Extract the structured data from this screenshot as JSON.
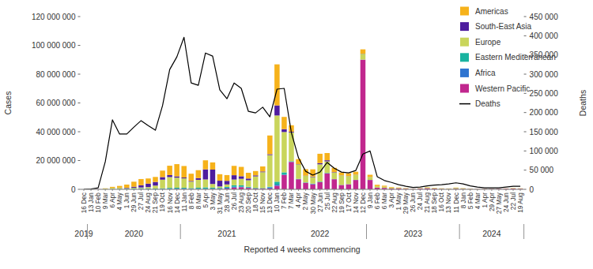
{
  "chart_data": {
    "type": "bar",
    "stacked": true,
    "legend": "upper right",
    "x_label": "Reported 4 weeks commencing",
    "y_label": "Cases",
    "y2_label": "Deaths",
    "categories": [
      "16 Dec",
      "13 Jan",
      "10 Feb",
      "9 Mar",
      "6 Apr",
      "4 May",
      "1 Jun",
      "29 Jun",
      "27 Jul",
      "24 Aug",
      "21 Sep",
      "19 Oct",
      "16 Nov",
      "14 Dec",
      "11 Jan",
      "8 Feb",
      "8 Mar",
      "5 Apr",
      "3 May",
      "31 May",
      "28 Jun",
      "26 Jul",
      "23 Aug",
      "20 Sep",
      "18 Oct",
      "15 Nov",
      "13 Dec",
      "10 Jan",
      "7 Feb",
      "7 Mar",
      "4 Apr",
      "2 May",
      "30 May",
      "27 Jun",
      "25 Jul",
      "22 Aug",
      "19 Sep",
      "17 Oct",
      "14 Nov",
      "12 Dec",
      "9 Jan",
      "6 Feb",
      "6 Mar",
      "3 Apr",
      "1 May",
      "29 May",
      "26 Jun",
      "24 Jul",
      "21 Aug",
      "18 Sep",
      "16 Oct",
      "13 Nov",
      "11 Dec",
      "8 Jan",
      "5 Feb",
      "4 Mar",
      "1 Apr",
      "29 Apr",
      "27 May",
      "24 Jun",
      "22 Jul",
      "19 Aug"
    ],
    "groups": [
      {
        "label": "2019",
        "count": 1
      },
      {
        "label": "2020",
        "count": 13
      },
      {
        "label": "2021",
        "count": 13
      },
      {
        "label": "2022",
        "count": 13
      },
      {
        "label": "2023",
        "count": 13
      },
      {
        "label": "2024",
        "count": 9
      }
    ],
    "series": [
      {
        "name": "Americas",
        "color": "#f6b21b",
        "values": [
          0,
          0,
          0,
          200000,
          700000,
          1200000,
          2200000,
          3500000,
          4300000,
          3600000,
          3500000,
          4500000,
          6500000,
          8500000,
          8000000,
          5000000,
          5500000,
          6300000,
          5000000,
          4500000,
          4000000,
          6500000,
          6500000,
          4000000,
          3000000,
          3500000,
          13000000,
          28500000,
          8500000,
          4500000,
          3500000,
          4500000,
          5000000,
          6500000,
          5000000,
          3000000,
          2000000,
          2000000,
          2000000,
          3000000,
          1500000,
          900000,
          700000,
          400000,
          300000,
          200000,
          100000,
          100000,
          200000,
          100000,
          100000,
          100000,
          150000,
          100000,
          100000,
          50000,
          50000,
          50000,
          50000,
          100000,
          100000,
          50000
        ]
      },
      {
        "name": "South-East Asia",
        "color": "#4e1d9e",
        "values": [
          0,
          0,
          0,
          0,
          0,
          100000,
          300000,
          700000,
          1600000,
          2400000,
          2500000,
          1800000,
          1400000,
          900000,
          600000,
          500000,
          1200000,
          7000000,
          10000000,
          4000000,
          2500000,
          3000000,
          1800000,
          1200000,
          700000,
          500000,
          600000,
          7000000,
          2000000,
          500000,
          200000,
          200000,
          400000,
          800000,
          800000,
          300000,
          100000,
          100000,
          100000,
          100000,
          50000,
          20000,
          20000,
          50000,
          50000,
          20000,
          10000,
          10000,
          20000,
          10000,
          10000,
          10000,
          50000,
          20000,
          10000,
          10000,
          10000,
          10000,
          10000,
          10000,
          10000,
          10000
        ]
      },
      {
        "name": "Europe",
        "color": "#c9d55c",
        "values": [
          0,
          0,
          0,
          400000,
          800000,
          800000,
          400000,
          500000,
          500000,
          900000,
          2000000,
          6000000,
          7500000,
          7000000,
          6500000,
          4500000,
          5500000,
          5500000,
          2500000,
          1000000,
          1800000,
          4000000,
          4500000,
          4500000,
          8000000,
          11000000,
          22000000,
          46000000,
          28000000,
          20000000,
          10000000,
          4500000,
          4500000,
          12000000,
          8000000,
          4500000,
          6500000,
          5500000,
          3500000,
          4000000,
          2000000,
          1000000,
          800000,
          500000,
          300000,
          200000,
          100000,
          200000,
          500000,
          400000,
          300000,
          300000,
          600000,
          400000,
          200000,
          100000,
          100000,
          50000,
          50000,
          100000,
          250000,
          250000
        ]
      },
      {
        "name": "Eastern Mediterranean",
        "color": "#19b3a0",
        "values": [
          0,
          0,
          0,
          30000,
          100000,
          200000,
          300000,
          400000,
          400000,
          400000,
          400000,
          500000,
          700000,
          600000,
          500000,
          500000,
          800000,
          1000000,
          800000,
          500000,
          500000,
          1000000,
          1000000,
          600000,
          400000,
          300000,
          400000,
          2000000,
          1500000,
          400000,
          200000,
          100000,
          200000,
          300000,
          300000,
          100000,
          100000,
          100000,
          100000,
          100000,
          50000,
          20000,
          10000,
          10000,
          10000,
          5000,
          5000,
          5000,
          5000,
          5000,
          5000,
          5000,
          5000,
          5000,
          5000,
          2000,
          2000,
          2000,
          2000,
          2000,
          2000,
          2000
        ]
      },
      {
        "name": "Africa",
        "color": "#2f74d0",
        "values": [
          0,
          0,
          0,
          5000,
          10000,
          20000,
          50000,
          150000,
          250000,
          150000,
          100000,
          100000,
          150000,
          300000,
          400000,
          200000,
          150000,
          150000,
          100000,
          200000,
          600000,
          600000,
          300000,
          200000,
          100000,
          100000,
          800000,
          800000,
          300000,
          100000,
          100000,
          200000,
          300000,
          100000,
          100000,
          50000,
          20000,
          20000,
          20000,
          20000,
          20000,
          5000,
          5000,
          2000,
          2000,
          2000,
          2000,
          2000,
          2000,
          2000,
          2000,
          2000,
          2000,
          2000,
          2000,
          2000,
          2000,
          2000,
          2000,
          2000,
          2000,
          2000
        ]
      },
      {
        "name": "Western Pacific",
        "color": "#c1278e",
        "values": [
          0,
          10000,
          70000,
          50000,
          100000,
          50000,
          50000,
          50000,
          100000,
          100000,
          100000,
          100000,
          150000,
          200000,
          200000,
          150000,
          150000,
          200000,
          300000,
          300000,
          500000,
          1200000,
          1500000,
          1000000,
          500000,
          500000,
          600000,
          2500000,
          10000000,
          19000000,
          7000000,
          4500000,
          3500000,
          5000000,
          11000000,
          7000000,
          3000000,
          3500000,
          6500000,
          90000000,
          6500000,
          1200000,
          1000000,
          600000,
          600000,
          400000,
          200000,
          500000,
          800000,
          500000,
          300000,
          200000,
          400000,
          300000,
          200000,
          150000,
          150000,
          200000,
          300000,
          400000,
          500000,
          400000
        ]
      },
      {
        "name": "Deaths",
        "color": "#000000",
        "type": "line",
        "axis": "y2",
        "values": [
          0,
          1000,
          4000,
          72000,
          181000,
          144000,
          144000,
          162000,
          179000,
          166000,
          154000,
          218000,
          312000,
          345000,
          396000,
          277000,
          271000,
          355000,
          347000,
          259000,
          236000,
          277000,
          263000,
          203000,
          199000,
          214000,
          189000,
          261000,
          263000,
          148000,
          82000,
          47000,
          37000,
          45000,
          70000,
          55000,
          45000,
          43000,
          49000,
          92000,
          100000,
          33000,
          23000,
          18000,
          12000,
          8000,
          5000,
          6000,
          9000,
          11000,
          12000,
          14000,
          17000,
          14000,
          9000,
          6000,
          4000,
          4000,
          4000,
          6000,
          8000,
          8000
        ]
      }
    ],
    "ylim": [
      0,
      120000000
    ],
    "yticks": [
      0,
      {
        "value": 20000000,
        "label": "20 000 000"
      },
      {
        "value": 40000000,
        "label": "40 000 000"
      },
      {
        "value": 60000000,
        "label": "60 000 000"
      },
      {
        "value": 80000000,
        "label": "80 000 000"
      },
      {
        "value": 100000000,
        "label": "100 000 000"
      },
      {
        "value": 120000000,
        "label": "120 000 000"
      }
    ],
    "y2lim": [
      0,
      450000
    ],
    "y2ticks": [
      0,
      {
        "value": 50000,
        "label": "50 000"
      },
      {
        "value": 100000,
        "label": "100 000"
      },
      {
        "value": 150000,
        "label": "150 000"
      },
      {
        "value": 200000,
        "label": "200 000"
      },
      {
        "value": 250000,
        "label": "250 000"
      },
      {
        "value": 300000,
        "label": "300 000"
      },
      {
        "value": 350000,
        "label": "350 000"
      },
      {
        "value": 400000,
        "label": "400 000"
      },
      {
        "value": 450000,
        "label": "450 000"
      }
    ]
  }
}
